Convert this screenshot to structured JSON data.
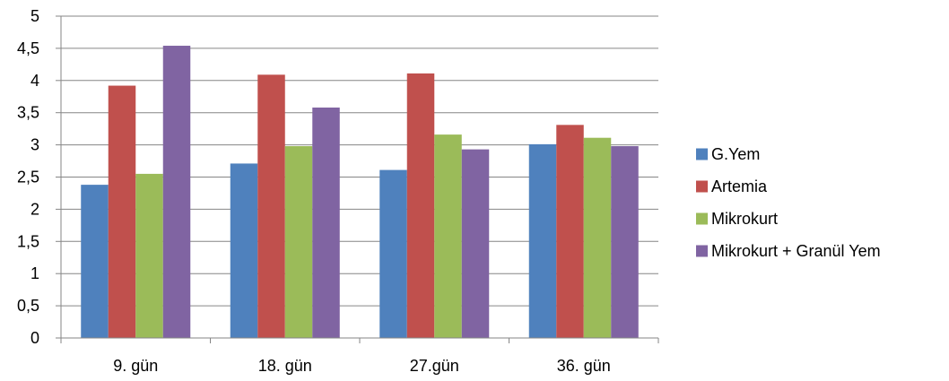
{
  "chart_data": {
    "type": "bar",
    "title": "",
    "xlabel": "",
    "ylabel": "",
    "categories": [
      "9. gün",
      "18. gün",
      "27.gün",
      "36. gün"
    ],
    "series": [
      {
        "name": "G.Yem",
        "color": "#4F81BD",
        "values": [
          2.38,
          2.71,
          2.61,
          3.01
        ]
      },
      {
        "name": "Artemia",
        "color": "#C0504D",
        "values": [
          3.92,
          4.09,
          4.11,
          3.31
        ]
      },
      {
        "name": "Mikrokurt",
        "color": "#9BBB59",
        "values": [
          2.55,
          2.98,
          3.16,
          3.11
        ]
      },
      {
        "name": "Mikrokurt + Granül Yem",
        "color": "#8064A2",
        "values": [
          4.54,
          3.58,
          2.93,
          2.98
        ]
      }
    ],
    "ylim": [
      0,
      5
    ],
    "yticks": [
      "0",
      "0,5",
      "1",
      "1,5",
      "2",
      "2,5",
      "3",
      "3,5",
      "4",
      "4,5",
      "5"
    ],
    "grid": true,
    "legend_position": "right"
  }
}
